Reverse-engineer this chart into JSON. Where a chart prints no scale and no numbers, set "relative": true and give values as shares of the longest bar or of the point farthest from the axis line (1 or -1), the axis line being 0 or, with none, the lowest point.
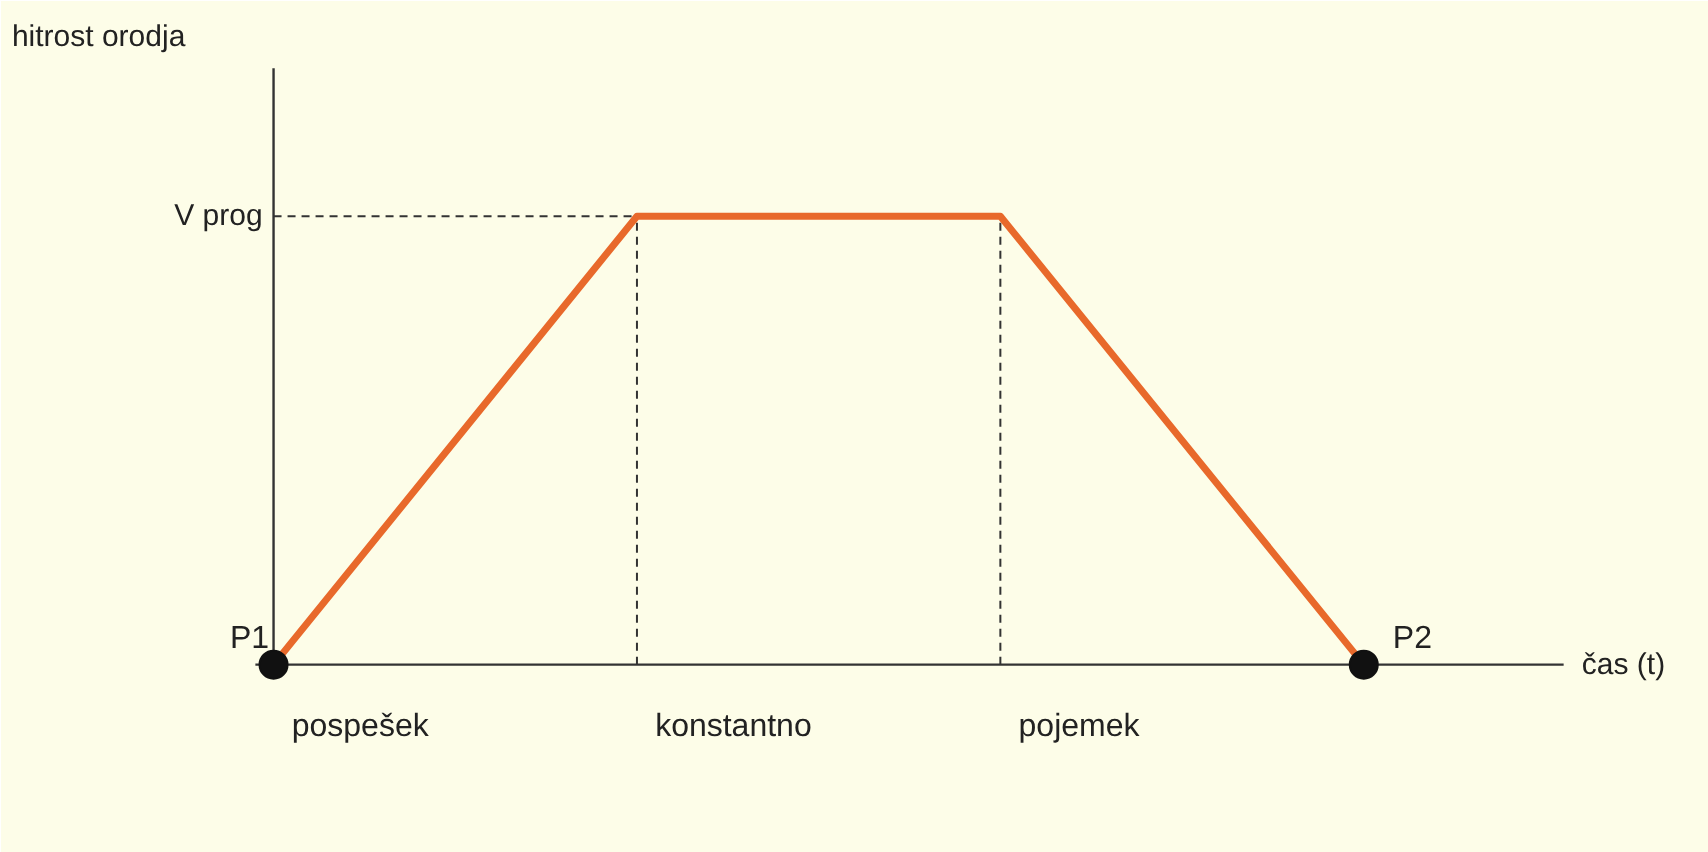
{
  "chart_data": {
    "type": "line",
    "relative": true,
    "xlabel": "čas (t)",
    "categories": [
      null,
      null,
      null,
      null
    ],
    "series": [
      {
        "color": "#e8692b",
        "values": [
          0,
          1,
          1,
          0
        ]
      }
    ],
    "ref_lines": [
      {
        "axis": "y",
        "value": 1,
        "label": "V prog",
        "line_style": "dashed",
        "color": "#333333"
      }
    ],
    "annotations": [
      "P1",
      "P2",
      "pospešek",
      "konstantno",
      "pojemek",
      "hitrost orodja"
    ],
    "grid": false
  }
}
